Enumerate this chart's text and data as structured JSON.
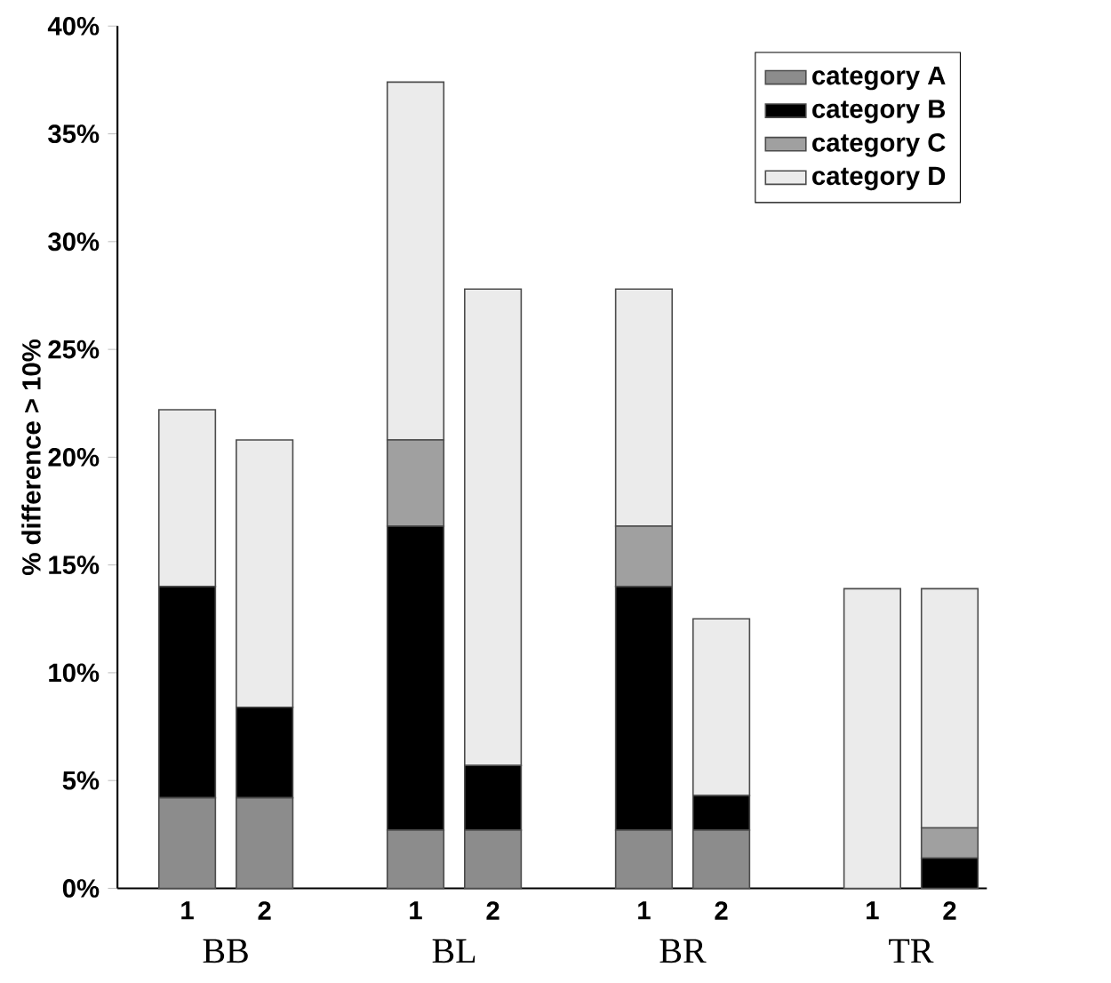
{
  "chart_data": {
    "type": "bar",
    "stacked": true,
    "ylabel": "% difference > 10%",
    "categories": [
      "1",
      "2",
      "1",
      "2",
      "1",
      "2",
      "1",
      "2"
    ],
    "annotations": [
      "BB",
      "BL",
      "BR",
      "TR"
    ],
    "series": [
      {
        "name": "category A",
        "color": "#8c8c8c",
        "values": [
          4.2,
          4.2,
          2.7,
          2.7,
          2.7,
          2.7,
          0,
          0
        ]
      },
      {
        "name": "category B",
        "color": "#000000",
        "values": [
          9.8,
          4.2,
          14.1,
          3.0,
          11.3,
          1.6,
          0,
          1.4
        ]
      },
      {
        "name": "category C",
        "color": "#a0a0a0",
        "values": [
          0,
          0,
          4.0,
          0,
          2.8,
          0,
          0,
          1.4
        ]
      },
      {
        "name": "category D",
        "color": "#ebebeb",
        "values": [
          8.2,
          12.4,
          16.6,
          22.1,
          11.0,
          8.2,
          13.9,
          11.1
        ]
      }
    ],
    "ylim": [
      0,
      40
    ],
    "yticks": [
      {
        "value": 0,
        "label": "0%"
      },
      {
        "value": 5,
        "label": "5%"
      },
      {
        "value": 10,
        "label": "10%"
      },
      {
        "value": 15,
        "label": "15%"
      },
      {
        "value": 20,
        "label": "20%"
      },
      {
        "value": 25,
        "label": "25%"
      },
      {
        "value": 30,
        "label": "30%"
      },
      {
        "value": 35,
        "label": "35%"
      },
      {
        "value": 40,
        "label": "40%"
      }
    ],
    "legend": "top right",
    "grid": false
  }
}
